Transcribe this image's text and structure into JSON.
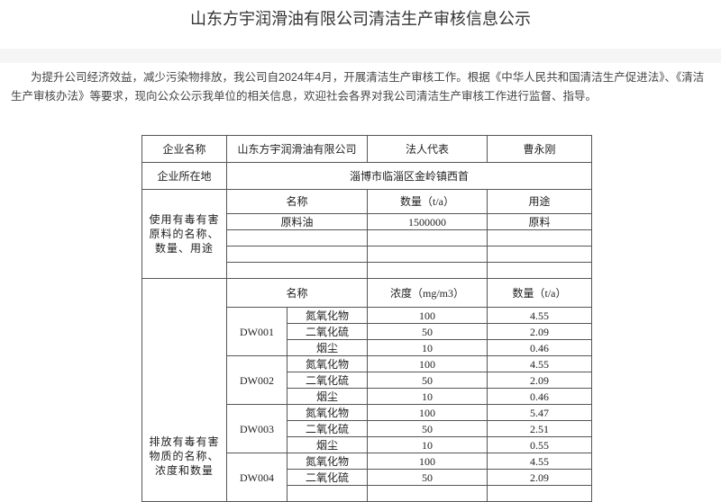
{
  "title": "山东方宇润滑油有限公司清洁生产审核信息公示",
  "intro": "为提升公司经济效益，减少污染物排放，我公司自2024年4月，开展清洁生产审核工作。根据《中华人民共和国清洁生产促进法》、《清洁生产审核办法》等要求，现向公众公示我单位的相关信息，欢迎社会各界对我公司清洁生产审核工作进行监督、指导。",
  "company": {
    "name_label": "企业名称",
    "name": "山东方宇润滑油有限公司",
    "legal_label": "法人代表",
    "legal": "曹永刚",
    "location_label": "企业所在地",
    "location": "淄博市临淄区金岭镇西首"
  },
  "materials": {
    "label": "使用有毒有害原料的名称、数量、用途",
    "headers": [
      "名称",
      "数量（t/a）",
      "用途"
    ],
    "rows": [
      [
        "原料油",
        "1500000",
        "原料"
      ],
      [
        "",
        "",
        ""
      ],
      [
        "",
        "",
        ""
      ],
      [
        "",
        "",
        ""
      ]
    ]
  },
  "emissions": {
    "label": "排放有毒有害物质的名称、浓度和数量",
    "headers": [
      "名称",
      "浓度（mg/m3）",
      "数量（t/a）"
    ],
    "outlets": [
      {
        "code": "DW001",
        "rows": [
          [
            "氮氧化物",
            "100",
            "4.55"
          ],
          [
            "二氧化硫",
            "50",
            "2.09"
          ],
          [
            "烟尘",
            "10",
            "0.46"
          ]
        ]
      },
      {
        "code": "DW002",
        "rows": [
          [
            "氮氧化物",
            "100",
            "4.55"
          ],
          [
            "二氧化硫",
            "50",
            "2.09"
          ],
          [
            "烟尘",
            "10",
            "0.46"
          ]
        ]
      },
      {
        "code": "DW003",
        "rows": [
          [
            "氮氧化物",
            "100",
            "5.47"
          ],
          [
            "二氧化硫",
            "50",
            "2.51"
          ],
          [
            "烟尘",
            "10",
            "0.55"
          ]
        ]
      },
      {
        "code": "DW004",
        "rows": [
          [
            "氮氧化物",
            "100",
            "4.55"
          ],
          [
            "二氧化硫",
            "50",
            "2.09"
          ]
        ]
      }
    ]
  }
}
